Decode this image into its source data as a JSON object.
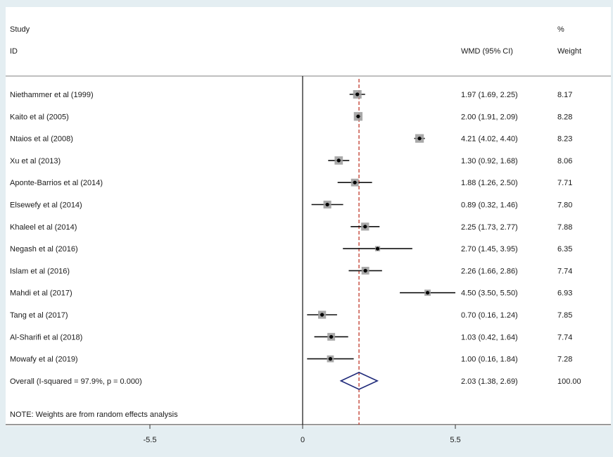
{
  "header": {
    "study_line1": "Study",
    "study_line2": "ID",
    "effect": "WMD (95% CI)",
    "weight_line1": "%",
    "weight_line2": "Weight"
  },
  "note": "NOTE: Weights are from random effects analysis",
  "colors": {
    "background": "#e4eef2",
    "panel": "#ffffff",
    "ci_line": "#111111",
    "overall_line": "#c0392b",
    "diamond": "#1f2a7a"
  },
  "chart_data": {
    "type": "forest",
    "effect_measure": "WMD (95% CI)",
    "xticks": [
      -5.5,
      0,
      5.5
    ],
    "tick_labels": [
      "-5.5",
      "0",
      "5.5"
    ],
    "xlim": [
      -5.5,
      5.5
    ],
    "null_line": 0,
    "studies": [
      {
        "name": "Niethammer  et al (1999)",
        "est": 1.97,
        "low": 1.69,
        "high": 2.25,
        "ci_text": "1.97 (1.69, 2.25)",
        "weight": "8.17"
      },
      {
        "name": "Kaito et al (2005)",
        "est": 2.0,
        "low": 1.91,
        "high": 2.09,
        "ci_text": "2.00 (1.91, 2.09)",
        "weight": "8.28"
      },
      {
        "name": "Ntaios et al (2008)",
        "est": 4.21,
        "low": 4.02,
        "high": 4.4,
        "ci_text": "4.21 (4.02, 4.40)",
        "weight": "8.23"
      },
      {
        "name": "Xu  et al (2013)",
        "est": 1.3,
        "low": 0.92,
        "high": 1.68,
        "ci_text": "1.30 (0.92, 1.68)",
        "weight": "8.06"
      },
      {
        "name": "Aponte-Barrios et al (2014)",
        "est": 1.88,
        "low": 1.26,
        "high": 2.5,
        "ci_text": "1.88 (1.26, 2.50)",
        "weight": "7.71"
      },
      {
        "name": "Elsewefy  et al (2014)",
        "est": 0.89,
        "low": 0.32,
        "high": 1.46,
        "ci_text": "0.89 (0.32, 1.46)",
        "weight": "7.80"
      },
      {
        "name": "Khaleel  et al (2014)",
        "est": 2.25,
        "low": 1.73,
        "high": 2.77,
        "ci_text": "2.25 (1.73, 2.77)",
        "weight": "7.88"
      },
      {
        "name": "Negash  et al (2016)",
        "est": 2.7,
        "low": 1.45,
        "high": 3.95,
        "ci_text": "2.70 (1.45, 3.95)",
        "weight": "6.35"
      },
      {
        "name": "Islam et al (2016)",
        "est": 2.26,
        "low": 1.66,
        "high": 2.86,
        "ci_text": "2.26 (1.66, 2.86)",
        "weight": "7.74"
      },
      {
        "name": "Mahdi et al (2017)",
        "est": 4.5,
        "low": 3.5,
        "high": 5.5,
        "ci_text": "4.50 (3.50, 5.50)",
        "weight": "6.93"
      },
      {
        "name": "Tang   et al (2017)",
        "est": 0.7,
        "low": 0.16,
        "high": 1.24,
        "ci_text": "0.70 (0.16, 1.24)",
        "weight": "7.85"
      },
      {
        "name": "Al-Sharifi et al (2018)",
        "est": 1.03,
        "low": 0.42,
        "high": 1.64,
        "ci_text": "1.03 (0.42, 1.64)",
        "weight": "7.74"
      },
      {
        "name": "Mowafy et al (2019)",
        "est": 1.0,
        "low": 0.16,
        "high": 1.84,
        "ci_text": "1.00 (0.16, 1.84)",
        "weight": "7.28"
      }
    ],
    "overall": {
      "name": "Overall  (I-squared = 97.9%, p = 0.000)",
      "est": 2.03,
      "low": 1.38,
      "high": 2.69,
      "ci_text": "2.03 (1.38, 2.69)",
      "weight": "100.00"
    }
  }
}
